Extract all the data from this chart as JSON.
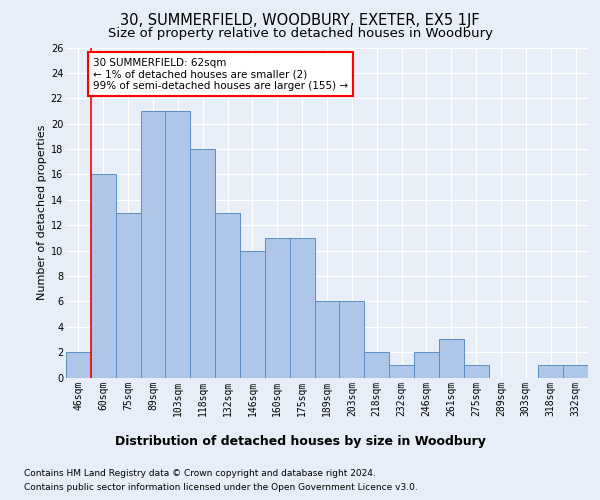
{
  "title": "30, SUMMERFIELD, WOODBURY, EXETER, EX5 1JF",
  "subtitle": "Size of property relative to detached houses in Woodbury",
  "xlabel": "Distribution of detached houses by size in Woodbury",
  "ylabel": "Number of detached properties",
  "categories": [
    "46sqm",
    "60sqm",
    "75sqm",
    "89sqm",
    "103sqm",
    "118sqm",
    "132sqm",
    "146sqm",
    "160sqm",
    "175sqm",
    "189sqm",
    "203sqm",
    "218sqm",
    "232sqm",
    "246sqm",
    "261sqm",
    "275sqm",
    "289sqm",
    "303sqm",
    "318sqm",
    "332sqm"
  ],
  "values": [
    2,
    16,
    13,
    21,
    21,
    18,
    13,
    10,
    11,
    11,
    6,
    6,
    2,
    1,
    2,
    3,
    1,
    0,
    0,
    1,
    1
  ],
  "bar_color": "#aec6e8",
  "bar_edge_color": "#5a8fc2",
  "red_line_x": 0.5,
  "annotation_text": "30 SUMMERFIELD: 62sqm\n← 1% of detached houses are smaller (2)\n99% of semi-detached houses are larger (155) →",
  "annotation_box_color": "white",
  "annotation_box_edge_color": "red",
  "ylim": [
    0,
    26
  ],
  "yticks": [
    0,
    2,
    4,
    6,
    8,
    10,
    12,
    14,
    16,
    18,
    20,
    22,
    24,
    26
  ],
  "footer_line1": "Contains HM Land Registry data © Crown copyright and database right 2024.",
  "footer_line2": "Contains public sector information licensed under the Open Government Licence v3.0.",
  "background_color": "#e8eef7",
  "grid_color": "#ffffff",
  "title_fontsize": 10.5,
  "subtitle_fontsize": 9.5,
  "xlabel_fontsize": 9,
  "ylabel_fontsize": 8,
  "tick_fontsize": 7,
  "annotation_fontsize": 7.5,
  "footer_fontsize": 6.5
}
